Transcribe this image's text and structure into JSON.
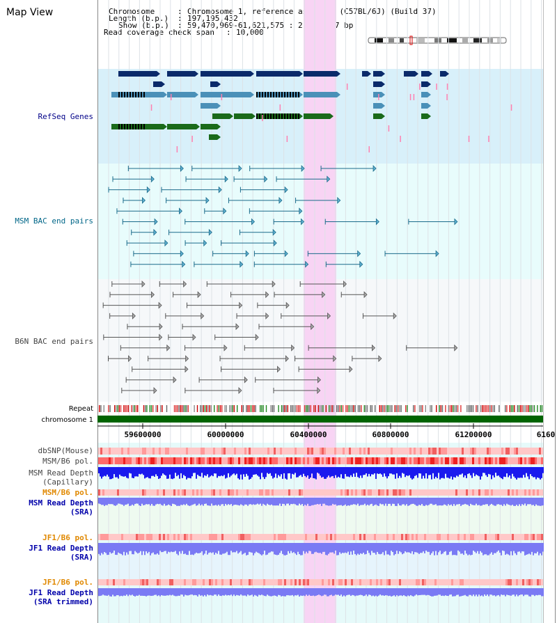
{
  "view_title": "Map View",
  "header": {
    "chromosome_key": "Chromosome",
    "chromosome_value": "Chromosome 1, reference assembly (C57BL/6J) (Build 37)",
    "length_key": "Length (b.p.)",
    "length_value": "197,195,432",
    "show_key": "Show (b.p.)",
    "show_value": "59,470,969-61,621,575 : 2,150,607 bp",
    "coverage_key": "Read coverage check span",
    "coverage_value": "10,000"
  },
  "tracks": {
    "refseq": "RefSeq Genes",
    "msm_bac": "MSM BAC end pairs",
    "b6n_bac": "B6N BAC end pairs",
    "repeat": "Repeat",
    "chromosome": "chromosome 1",
    "dbsnp": "dbSNP(Mouse)",
    "msm_b6_pol": "MSM/B6 pol.",
    "msm_depth_cap_1": "MSM Read Depth",
    "msm_depth_cap_2": "(Capillary)",
    "msm_b6_pol_2": "MSM/B6 pol.",
    "msm_depth_sra_1": "MSM Read Depth",
    "msm_depth_sra_2": "(SRA)",
    "jf1_b6_pol": "JF1/B6 pol.",
    "jf1_depth_sra_1": "JF1 Read Depth",
    "jf1_depth_sra_2": "(SRA)",
    "jf1_b6_pol_2": "JF1/B6 pol.",
    "jf1_depth_trim_1": "JF1 Read Depth",
    "jf1_depth_trim_2": "(SRA trimmed)"
  },
  "axis_ticks": [
    "59600000",
    "60000000",
    "60400000",
    "60800000",
    "61200000",
    "6160"
  ],
  "highlight_range_bp": [
    60400000,
    60540000
  ],
  "colors": {
    "refseq_bg": "#d8f0fa",
    "msm_bg": "#e8fcfc",
    "b6n_bg": "#f6f8fa",
    "highlight": "#f8d4f4",
    "chromosome_bar": "#006400",
    "depth_blue": "#1a1aee",
    "depth_violet": "#7a7af4",
    "refseq_label": "#000088",
    "msm_label": "#006688",
    "orange_label": "#e08800",
    "blue_label": "#0000aa"
  }
}
